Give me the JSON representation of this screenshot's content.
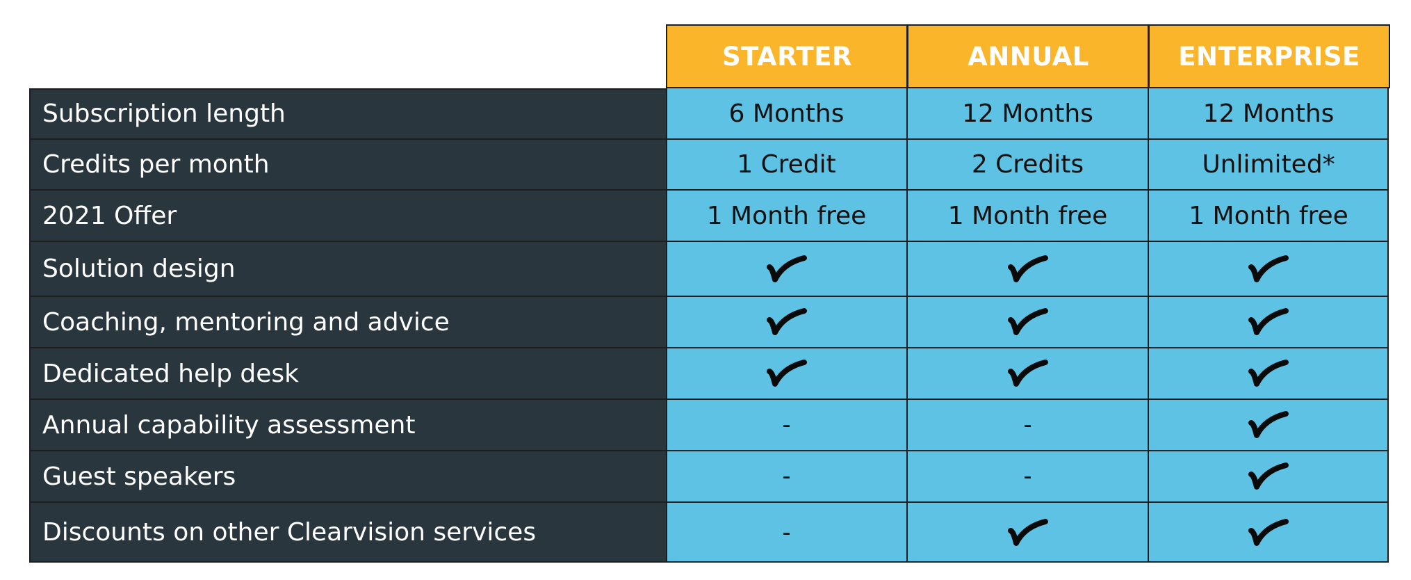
{
  "colors": {
    "header_bg": "#fbb52a",
    "label_bg": "#29363e",
    "cell_bg": "#5ec2e4",
    "border": "#1e1e1e"
  },
  "columns": [
    "STARTER",
    "ANNUAL",
    "ENTERPRISE"
  ],
  "rows": [
    {
      "label": "Subscription length",
      "cells": [
        {
          "type": "text",
          "value": "6 Months"
        },
        {
          "type": "text",
          "value": "12 Months"
        },
        {
          "type": "text",
          "value": "12 Months"
        }
      ]
    },
    {
      "label": "Credits per month",
      "cells": [
        {
          "type": "text",
          "value": "1 Credit"
        },
        {
          "type": "text",
          "value": "2 Credits"
        },
        {
          "type": "text",
          "value": "Unlimited*"
        }
      ]
    },
    {
      "label": "2021 Offer",
      "cells": [
        {
          "type": "text",
          "value": "1 Month free"
        },
        {
          "type": "text",
          "value": "1 Month free"
        },
        {
          "type": "text",
          "value": "1 Month free"
        }
      ]
    },
    {
      "label": "Solution design",
      "cells": [
        {
          "type": "check",
          "icon": "check-icon"
        },
        {
          "type": "check",
          "icon": "check-icon"
        },
        {
          "type": "check",
          "icon": "check-icon"
        }
      ]
    },
    {
      "label": "Coaching, mentoring and advice",
      "cells": [
        {
          "type": "check",
          "icon": "check-icon"
        },
        {
          "type": "check",
          "icon": "check-icon"
        },
        {
          "type": "check",
          "icon": "check-icon"
        }
      ]
    },
    {
      "label": "Dedicated help desk",
      "cells": [
        {
          "type": "check",
          "icon": "check-icon"
        },
        {
          "type": "check",
          "icon": "check-icon"
        },
        {
          "type": "check",
          "icon": "check-icon"
        }
      ]
    },
    {
      "label": "Annual capability assessment",
      "cells": [
        {
          "type": "text",
          "value": "-"
        },
        {
          "type": "text",
          "value": "-"
        },
        {
          "type": "check",
          "icon": "check-icon"
        }
      ]
    },
    {
      "label": "Guest speakers",
      "cells": [
        {
          "type": "text",
          "value": "-"
        },
        {
          "type": "text",
          "value": "-"
        },
        {
          "type": "check",
          "icon": "check-icon"
        }
      ]
    },
    {
      "label": "Discounts on other Clearvision services",
      "cells": [
        {
          "type": "text",
          "value": "-"
        },
        {
          "type": "check",
          "icon": "check-icon"
        },
        {
          "type": "check",
          "icon": "check-icon"
        }
      ]
    }
  ]
}
